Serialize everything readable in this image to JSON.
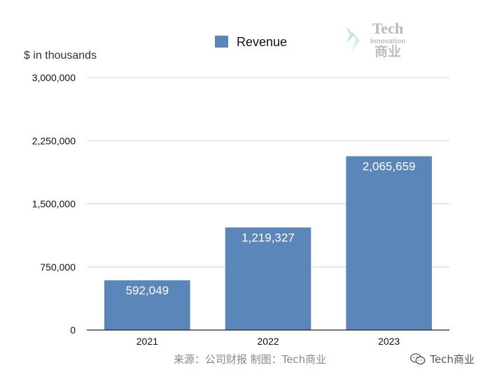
{
  "chart_data": {
    "type": "bar",
    "categories": [
      "2021",
      "2022",
      "2023"
    ],
    "series": [
      {
        "name": "Revenue",
        "values": [
          592049,
          1219327,
          2065659
        ]
      }
    ],
    "data_labels": [
      "592,049",
      "1,219,327",
      "2,065,659"
    ],
    "ylabel": "$ in thousands",
    "ylim": [
      0,
      3000000
    ],
    "yticks": [
      0,
      750000,
      1500000,
      2250000,
      3000000
    ],
    "ytick_labels": [
      "0",
      "750,000",
      "1,500,000",
      "2,250,000",
      "3,000,000"
    ],
    "grid": true,
    "legend": "top-center",
    "bar_color": "#5b86b9",
    "grid_color": "#d0d0d0"
  },
  "source_text": "来源：公司财报 制图：Tech商业",
  "watermark": {
    "text": "Tech商业",
    "icon": "wechat-icon"
  },
  "logo": {
    "line1": "Tech",
    "line2": "Innovation",
    "line3": "商业",
    "color": "#8a8a8a",
    "accent": "#7fd8a8"
  }
}
